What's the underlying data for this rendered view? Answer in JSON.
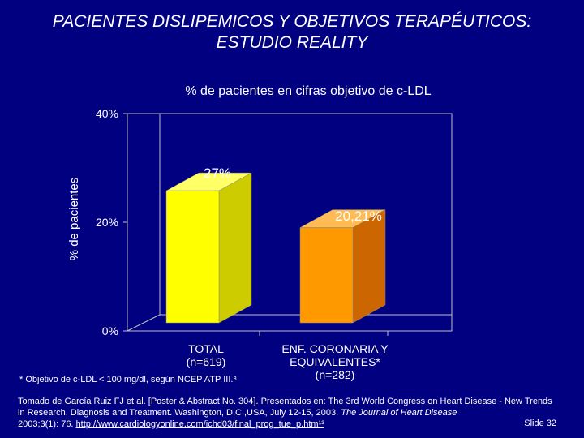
{
  "title_line1": "PACIENTES DISLIPEMICOS Y OBJETIVOS TERAPÉUTICOS:",
  "title_line2": "ESTUDIO REALITY",
  "colors": {
    "background": "#000080",
    "bar_total": "#ffff00",
    "bar_enf": "#ff9900",
    "plot_bg": "#000080"
  },
  "chart_data": {
    "type": "bar",
    "title": "% de pacientes en cifras objetivo de c-LDL",
    "ylabel": "% de pacientes",
    "ylim": [
      0,
      40
    ],
    "yticks": [
      "0%",
      "20%",
      "40%"
    ],
    "ytick_values": [
      0,
      20,
      40
    ],
    "categories": [
      {
        "line1": "TOTAL",
        "line2": "(n=619)"
      },
      {
        "line1": "ENF. CORONARIA Y",
        "line2": "EQUIVALENTES*",
        "line3": "(n=282)"
      }
    ],
    "values": [
      27,
      20.21
    ],
    "data_labels": [
      "27%",
      "20,21%"
    ]
  },
  "footnote": "* Objetivo de c-LDL < 100 mg/dl, según NCEP ATP III.⁸",
  "source": {
    "part1": "Tomado de García Ruiz FJ et al. [Poster & Abstract No. 304]. Presentados en: The 3rd World Congress on Heart Disease - New Trends in Research, Diagnosis and Treatment. Washington, D.C.,USA, July 12-15, 2003.",
    "journal": "The Journal of Heart Disease",
    "part2": "2003;3(1): 76.",
    "url": "http://www.cardiologyonline.com/ichd03/final_prog_tue_p.htm¹³"
  },
  "slide_label": "Slide 32"
}
